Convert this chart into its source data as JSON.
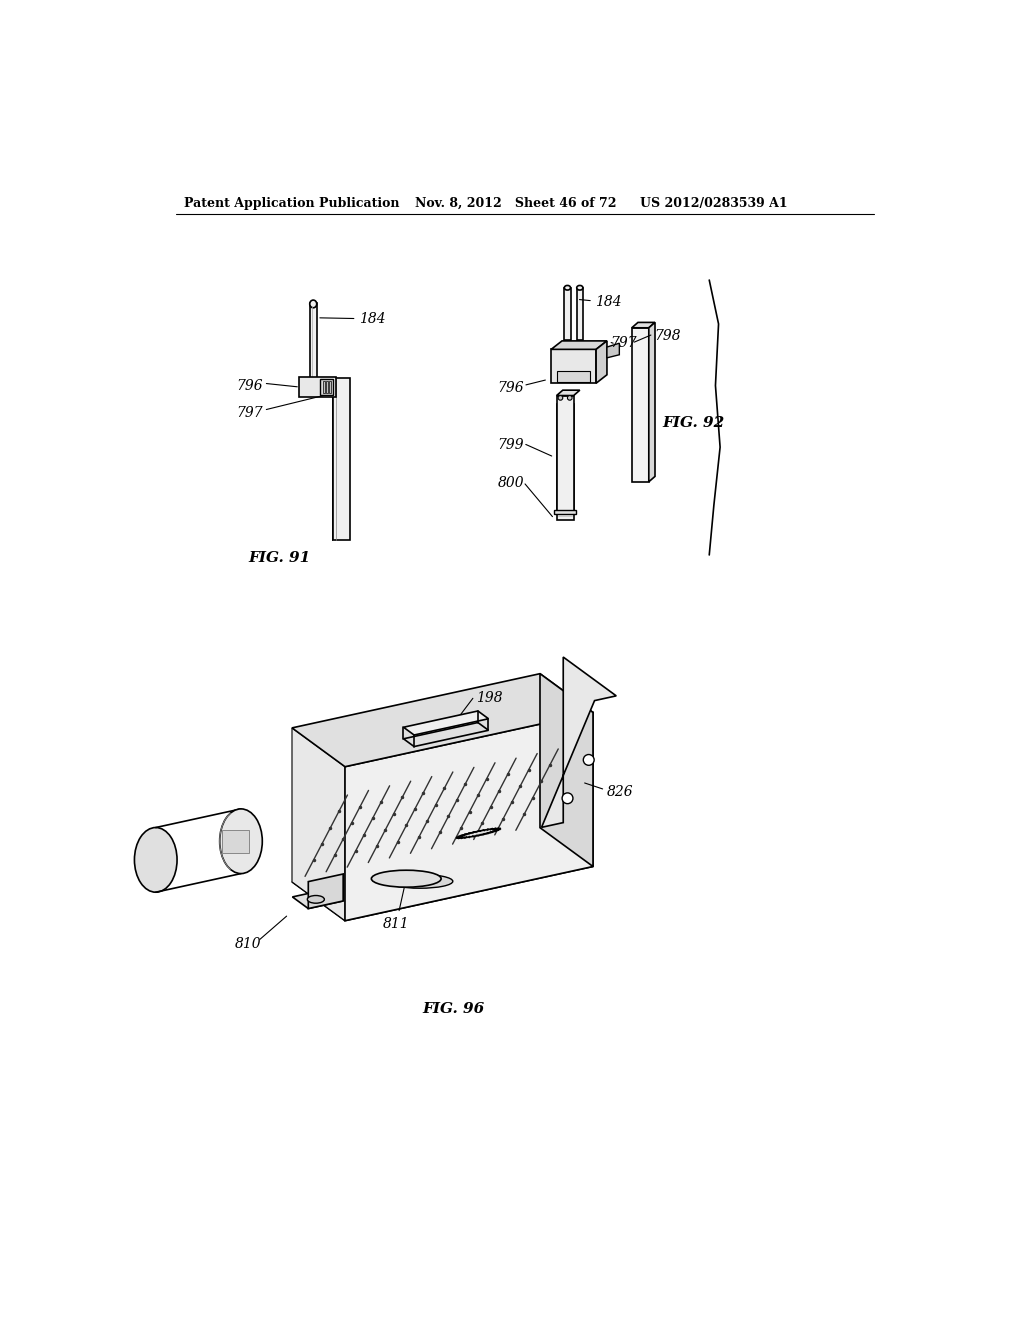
{
  "bg_color": "#ffffff",
  "header_left": "Patent Application Publication",
  "header_mid": "Nov. 8, 2012   Sheet 46 of 72",
  "header_right": "US 2012/0283539 A1",
  "fig91_label": "FIG. 91",
  "fig92_label": "FIG. 92",
  "fig96_label": "FIG. 96",
  "lc": "#000000",
  "lw": 1.0,
  "label_fontsize": 10,
  "fig_label_fontsize": 11,
  "header_fontsize": 9
}
